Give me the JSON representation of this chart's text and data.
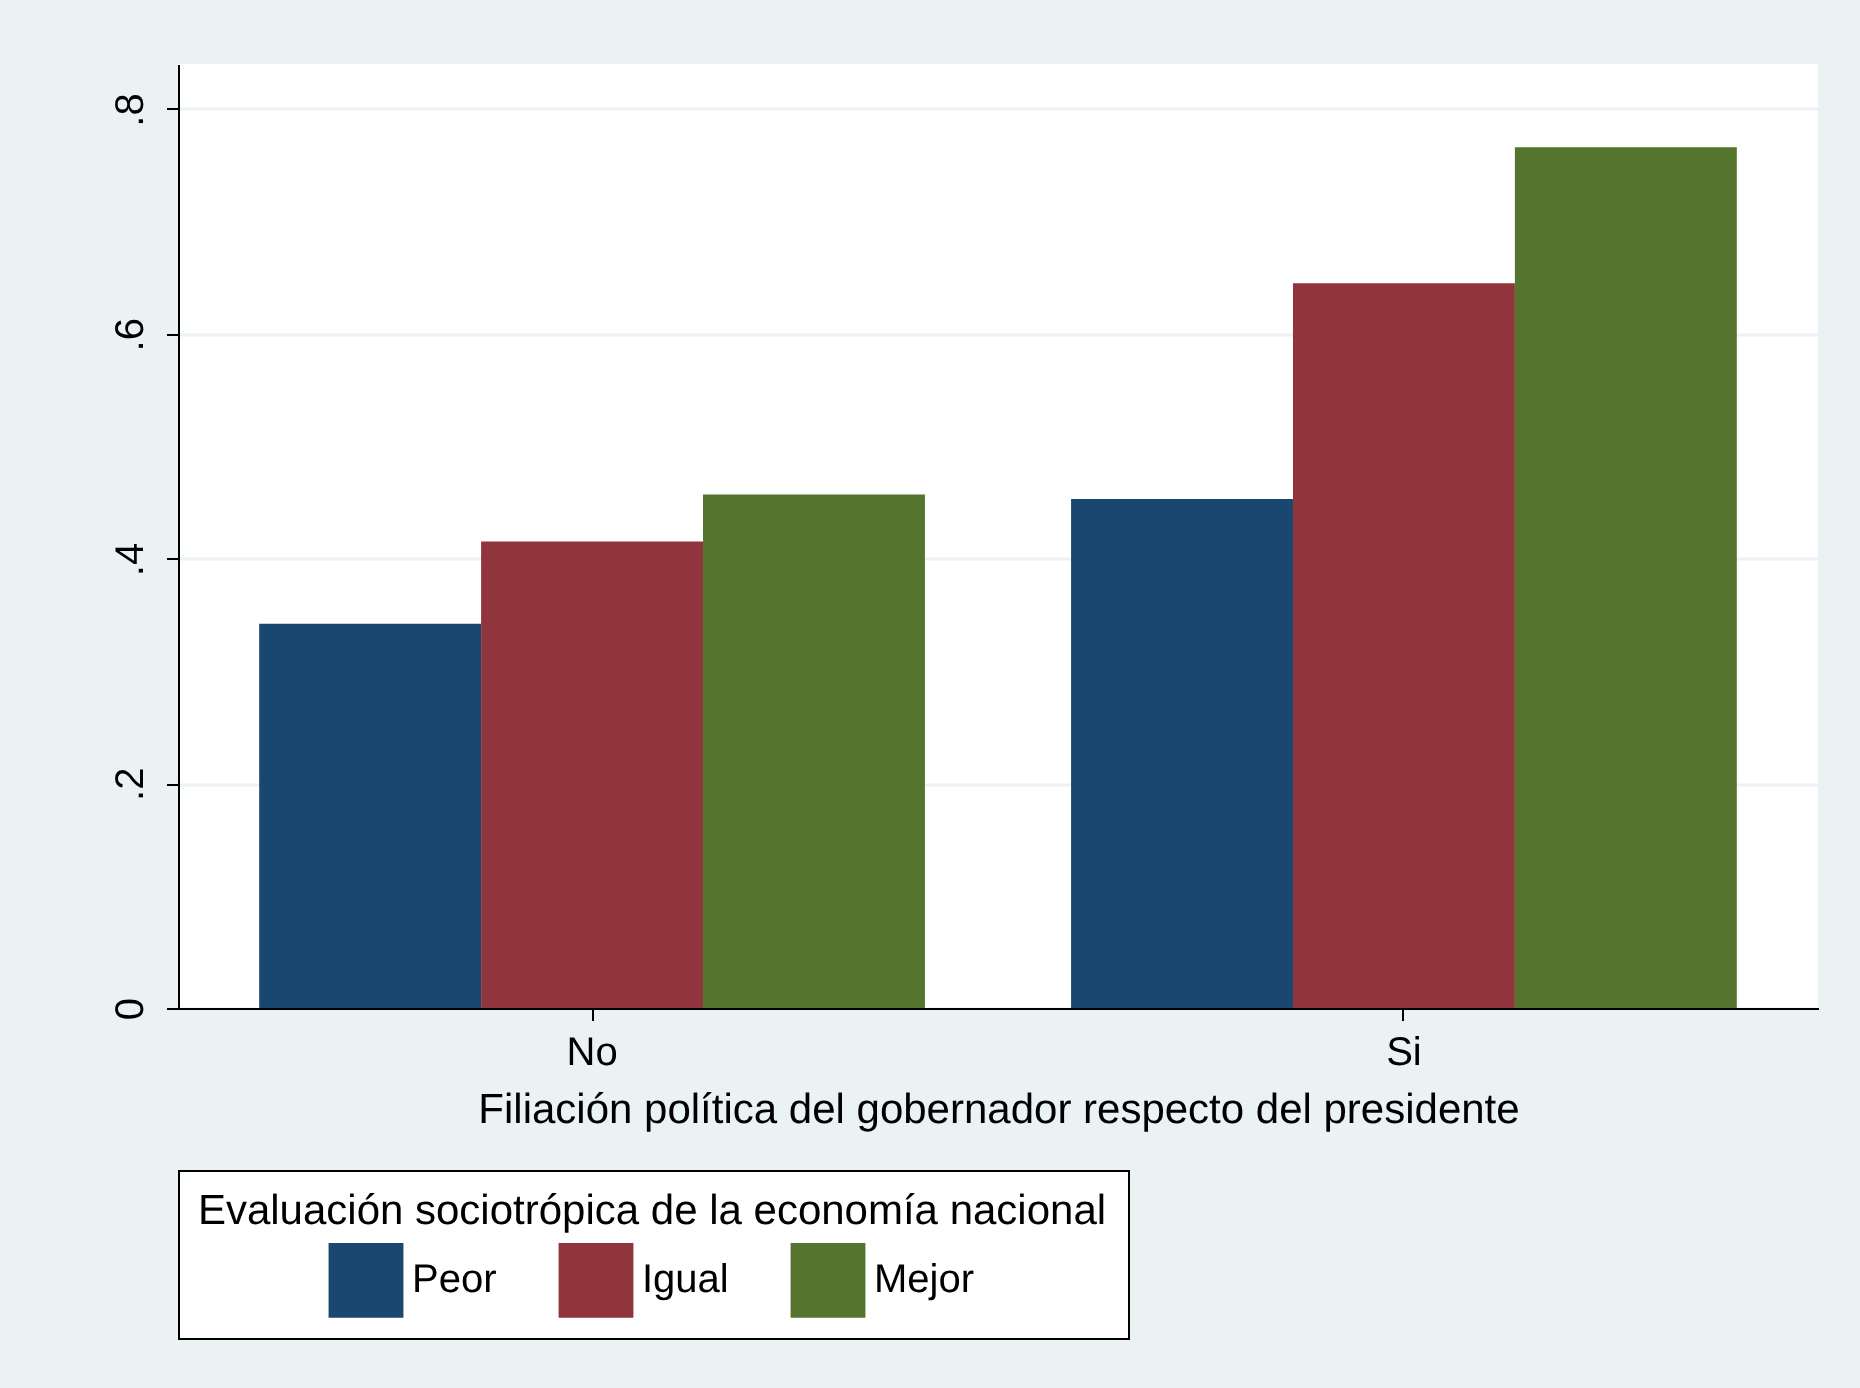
{
  "chart_data": {
    "type": "bar",
    "xlabel": "Filiación política del gobernador respecto del presidente",
    "legend_title": "Evaluación sociotrópica de la economía nacional",
    "categories": [
      "No",
      "Si"
    ],
    "series": [
      {
        "name": "Peor",
        "color": "#1a476f",
        "values": [
          0.342,
          0.453
        ]
      },
      {
        "name": "Igual",
        "color": "#90353b",
        "values": [
          0.415,
          0.645
        ]
      },
      {
        "name": "Mejor",
        "color": "#55752f",
        "values": [
          0.457,
          0.766
        ]
      }
    ],
    "ylim": [
      0,
      0.84
    ],
    "yticks": [
      {
        "value": 0,
        "label": "0"
      },
      {
        "value": 0.2,
        "label": ".2"
      },
      {
        "value": 0.4,
        "label": ".4"
      },
      {
        "value": 0.6,
        "label": ".6"
      },
      {
        "value": 0.8,
        "label": ".8"
      }
    ],
    "grid": "y",
    "legend": "bottom"
  }
}
